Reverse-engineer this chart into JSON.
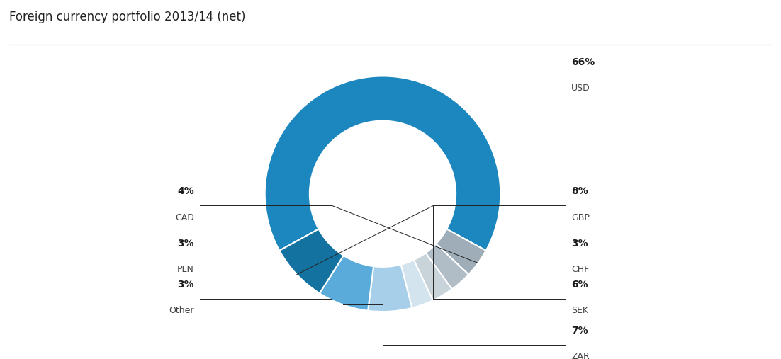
{
  "title": "Foreign currency portfolio 2013/14 (net)",
  "title_fontsize": 12,
  "slices_ordered": [
    {
      "label": "USD",
      "pct": 66,
      "color": "#1b87be"
    },
    {
      "label": "CAD",
      "pct": 4,
      "color": "#9eadb8"
    },
    {
      "label": "PLN",
      "pct": 3,
      "color": "#b0bcc6"
    },
    {
      "label": "Other",
      "pct": 3,
      "color": "#c8d4da"
    },
    {
      "label": "CHF",
      "pct": 3,
      "color": "#d4e4ef"
    },
    {
      "label": "SEK",
      "pct": 6,
      "color": "#a8cfea"
    },
    {
      "label": "ZAR",
      "pct": 7,
      "color": "#5aabda"
    },
    {
      "label": "GBP",
      "pct": 8,
      "color": "#1472a0"
    }
  ],
  "background_color": "#ffffff",
  "wedge_edge_color": "#ffffff",
  "line_color": "#222222",
  "pct_fontsize": 10,
  "label_fontsize": 9,
  "donut_width": 0.38,
  "start_angle": 208.8,
  "right_labels": [
    {
      "label": "USD",
      "pct": "66%"
    },
    {
      "label": "GBP",
      "pct": "8%"
    },
    {
      "label": "CHF",
      "pct": "3%"
    },
    {
      "label": "SEK",
      "pct": "6%"
    },
    {
      "label": "ZAR",
      "pct": "7%"
    }
  ],
  "left_labels": [
    {
      "label": "CAD",
      "pct": "4%"
    },
    {
      "label": "PLN",
      "pct": "3%"
    },
    {
      "label": "Other",
      "pct": "3%"
    }
  ]
}
